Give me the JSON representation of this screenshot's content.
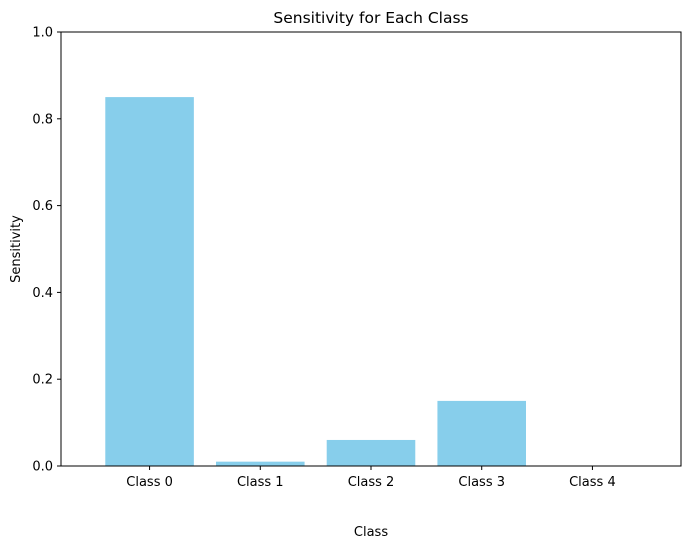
{
  "chart_data": {
    "type": "bar",
    "title": "Sensitivity for Each Class",
    "xlabel": "Class",
    "ylabel": "Sensitivity",
    "categories": [
      "Class 0",
      "Class 1",
      "Class 2",
      "Class 3",
      "Class 4"
    ],
    "values": [
      0.85,
      0.01,
      0.06,
      0.15,
      0.0
    ],
    "ylim": [
      0,
      1.0
    ],
    "yticks": [
      "0.0",
      "0.2",
      "0.4",
      "0.6",
      "0.8",
      "1.0"
    ],
    "bar_color": "#87ceeb",
    "grid": false,
    "legend": false
  }
}
